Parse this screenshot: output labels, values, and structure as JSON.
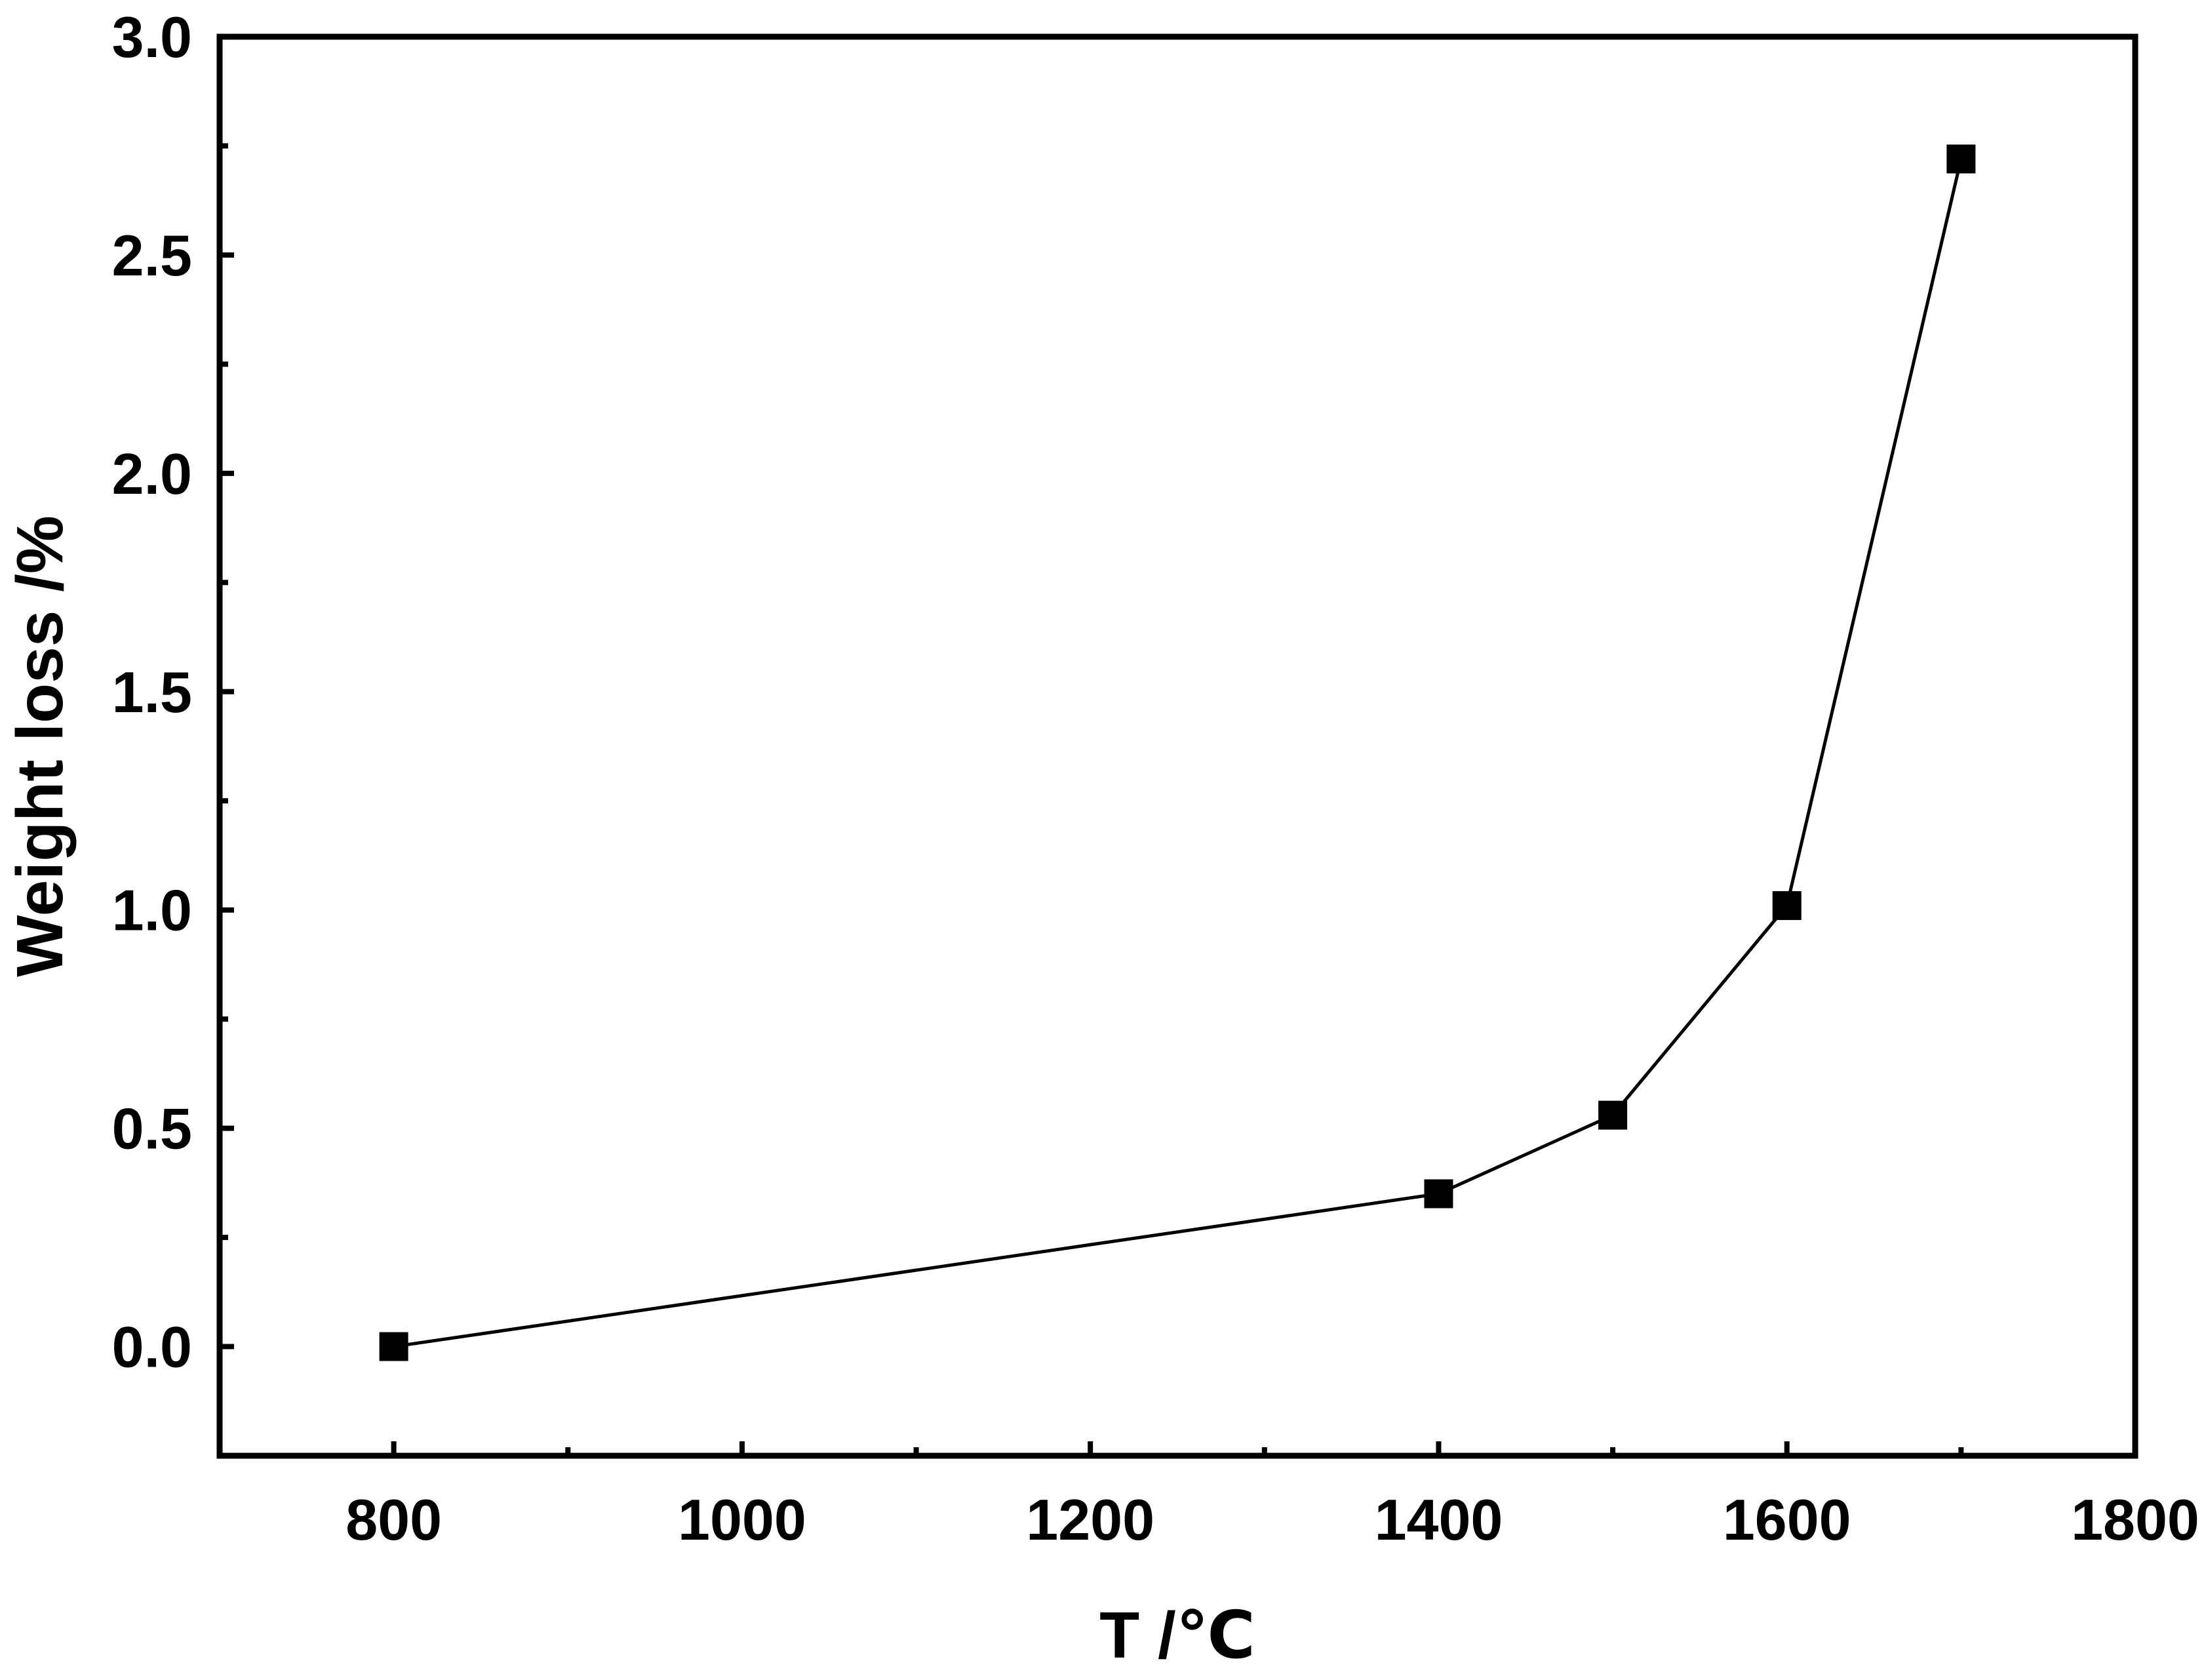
{
  "chart_data": {
    "type": "line",
    "title": "",
    "xlabel": "T /℃",
    "ylabel": "Weight loss /%",
    "xlim": [
      700,
      1800
    ],
    "ylim": [
      -0.25,
      3.0
    ],
    "x_ticks": [
      800,
      1000,
      1200,
      1400,
      1600,
      1800
    ],
    "y_ticks": [
      0.0,
      0.5,
      1.0,
      1.5,
      2.0,
      2.5,
      3.0
    ],
    "x_tick_labels": [
      "800",
      "1000",
      "1200",
      "1400",
      "1600",
      "1800"
    ],
    "y_tick_labels": [
      "0.0",
      "0.5",
      "1.0",
      "1.5",
      "2.0",
      "2.5",
      "3.0"
    ],
    "grid": false,
    "legend": "none",
    "series": [
      {
        "marker": "square",
        "color": "#000000",
        "x": [
          800,
          1400,
          1500,
          1600,
          1700
        ],
        "y": [
          0.0,
          0.35,
          0.53,
          1.01,
          2.72
        ]
      }
    ]
  }
}
